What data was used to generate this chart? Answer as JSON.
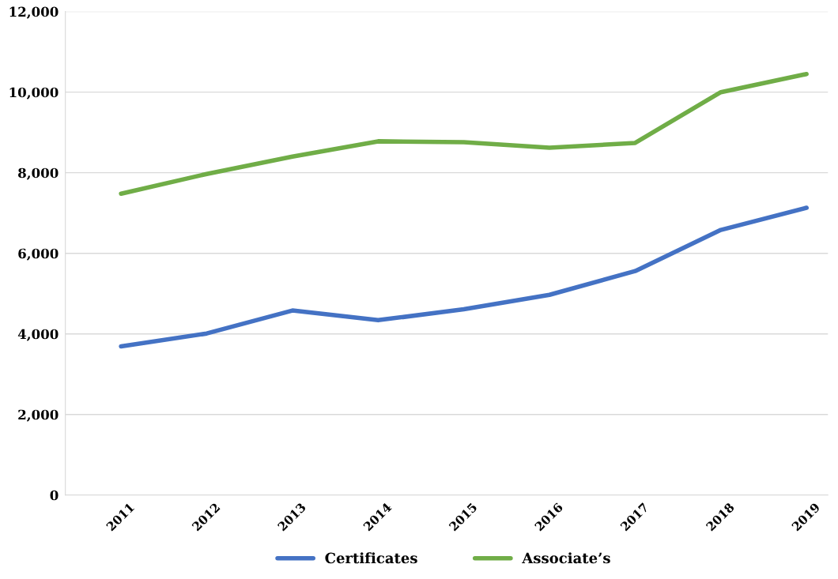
{
  "chart_data": {
    "type": "line",
    "categories": [
      "2011",
      "2012",
      "2013",
      "2014",
      "2015",
      "2016",
      "2017",
      "2018",
      "2019"
    ],
    "series": [
      {
        "name": "Certificates",
        "color": "#4472c4",
        "values": [
          3690,
          4010,
          4580,
          4340,
          4610,
          4970,
          5560,
          6580,
          7130
        ]
      },
      {
        "name": "Associate’s",
        "color": "#70ad47",
        "values": [
          7480,
          7970,
          8400,
          8780,
          8760,
          8620,
          8740,
          10000,
          10450
        ]
      }
    ],
    "ylim": [
      0,
      12000
    ],
    "yticks": [
      {
        "value": 0,
        "label": "0"
      },
      {
        "value": 2000,
        "label": "2,000"
      },
      {
        "value": 4000,
        "label": "4,000"
      },
      {
        "value": 6000,
        "label": "6,000"
      },
      {
        "value": 8000,
        "label": "8,000"
      },
      {
        "value": 10000,
        "label": "10,000"
      },
      {
        "value": 12000,
        "label": "12,000"
      }
    ],
    "grid": "y",
    "legend": "bottom",
    "marker": "none",
    "line_style": "solid"
  }
}
